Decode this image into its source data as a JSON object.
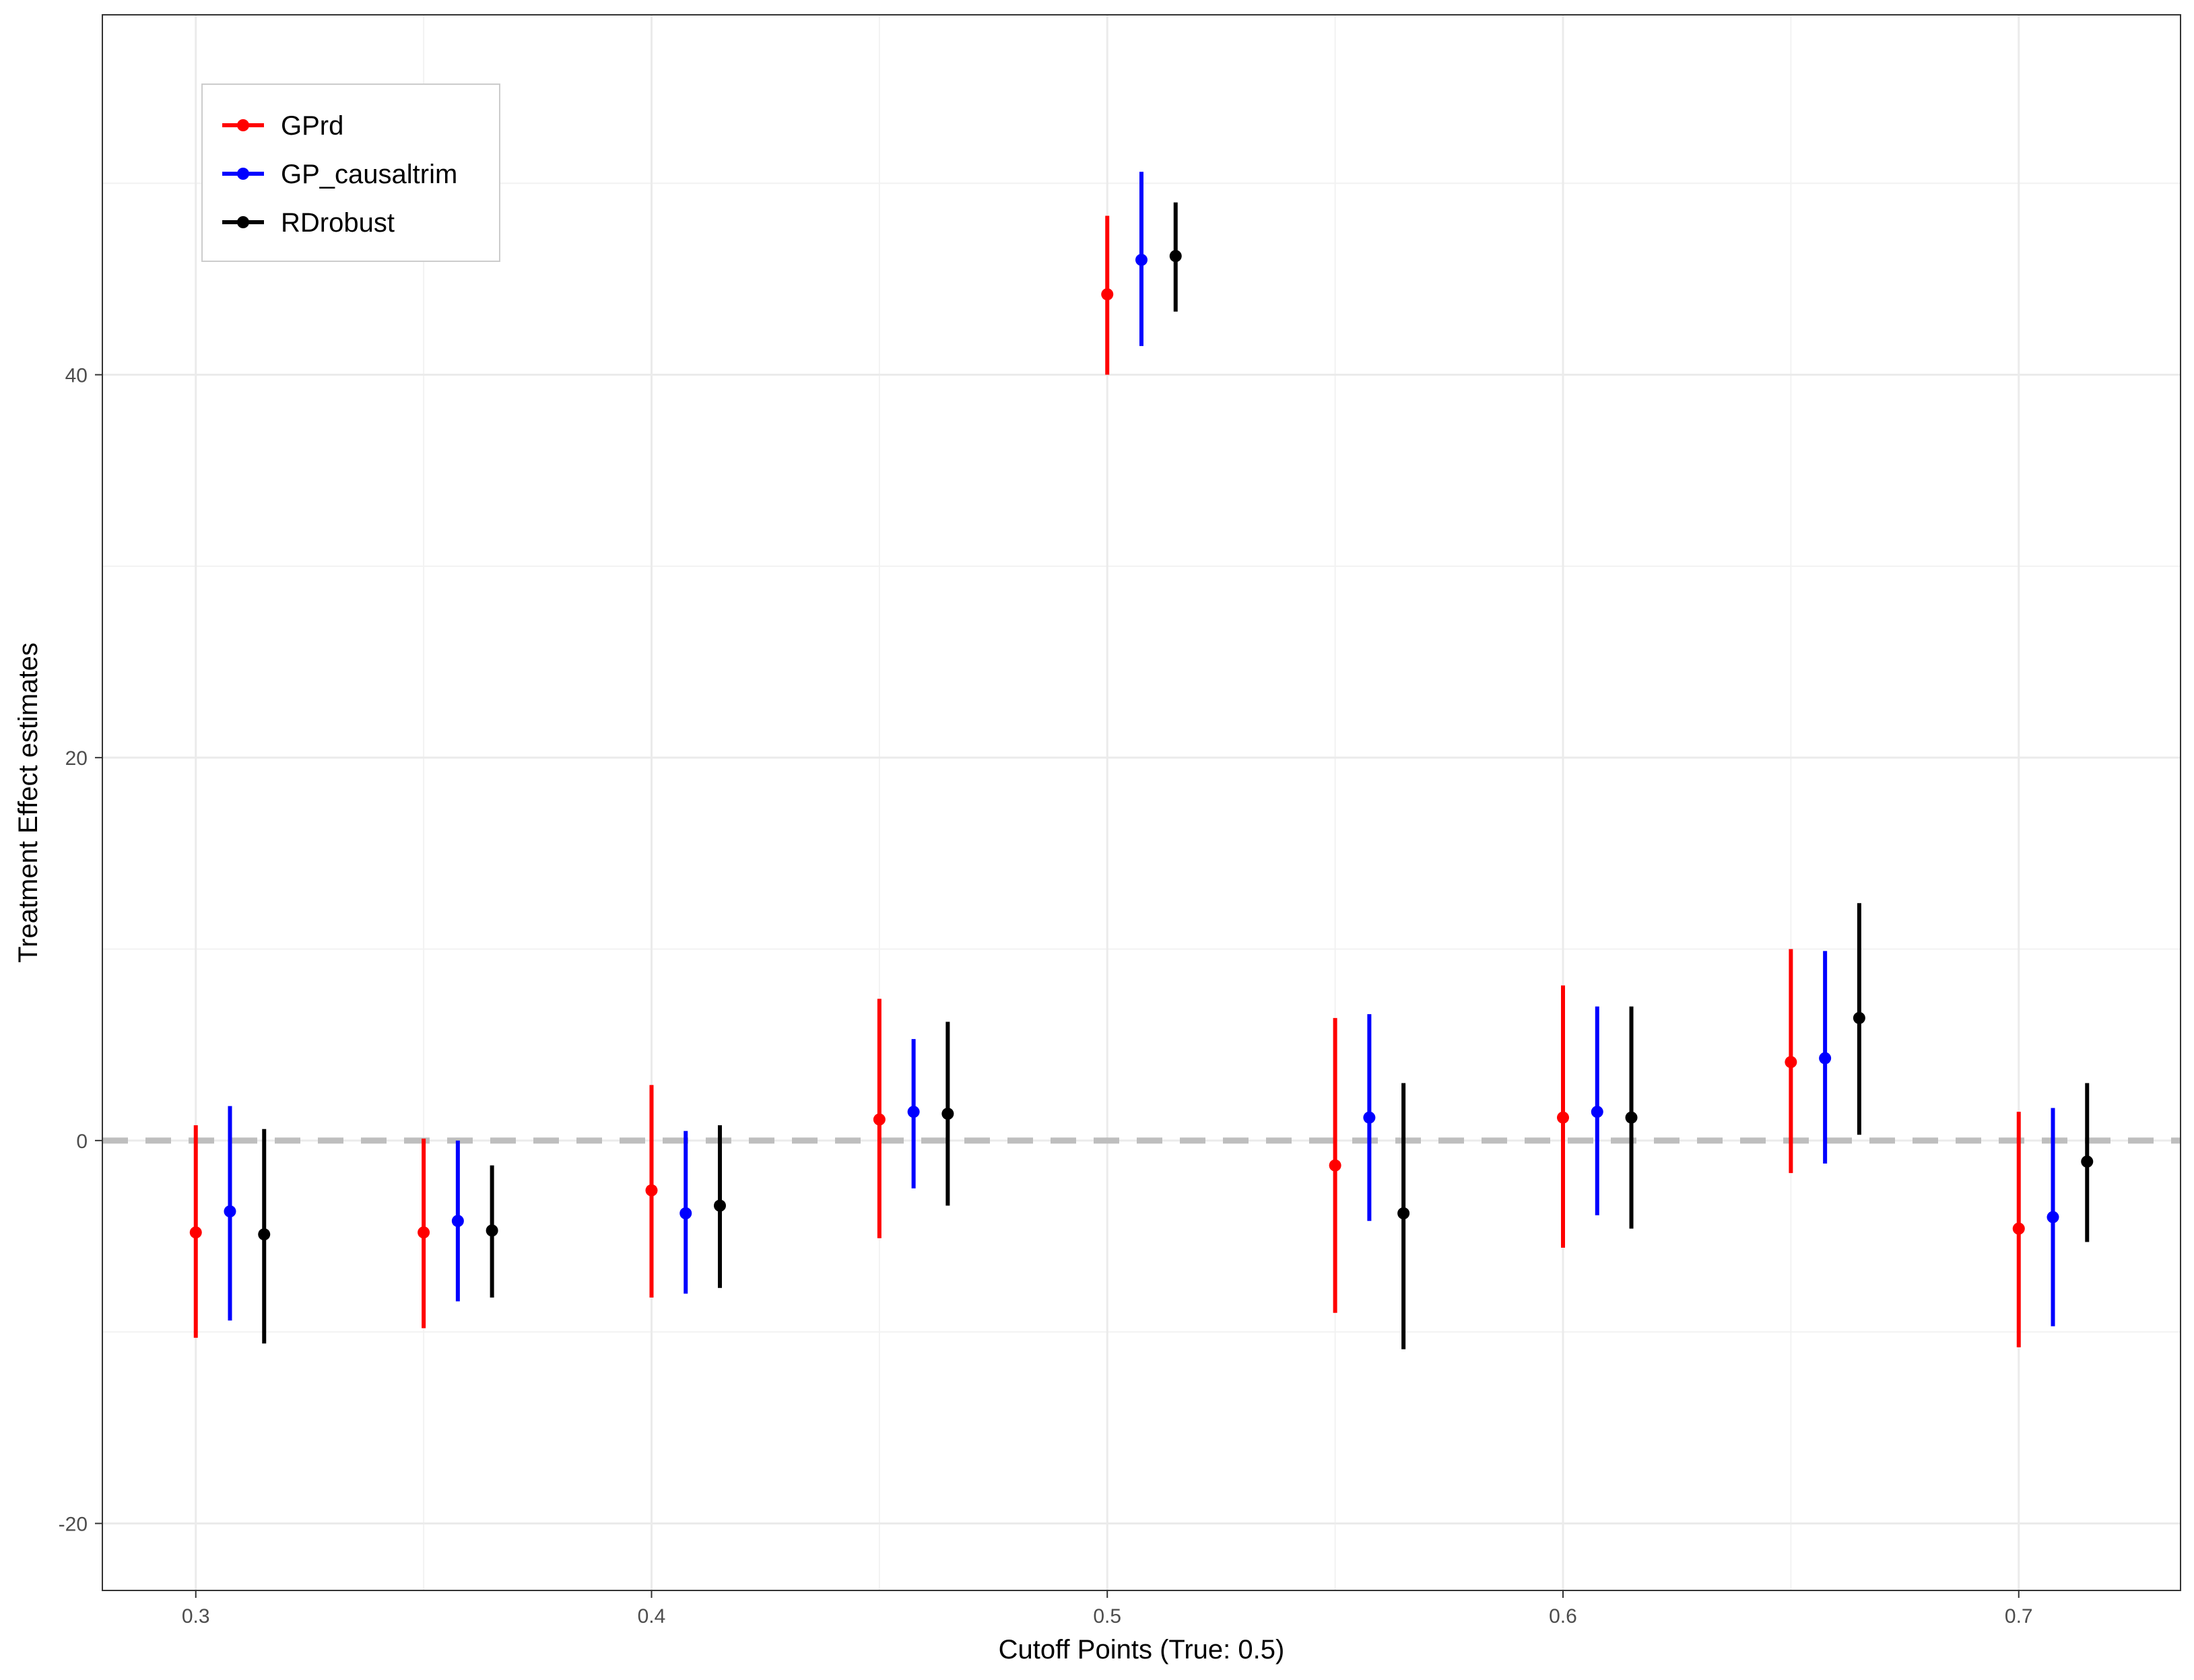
{
  "chart_data": {
    "type": "errorbar",
    "title": "",
    "xlabel": "Cutoff Points (True: 0.5)",
    "ylabel": "Treatment Effect estimates",
    "xlim": [
      0.2795,
      0.7355
    ],
    "ylim": [
      -23.5,
      58.8
    ],
    "x_ticks": [
      0.3,
      0.4,
      0.5,
      0.6,
      0.7
    ],
    "x_tick_labels": [
      "0.3",
      "0.4",
      "0.5",
      "0.6",
      "0.7"
    ],
    "y_ticks": [
      -20,
      0,
      20,
      40
    ],
    "y_tick_labels": [
      "-20",
      "0",
      "20",
      "40"
    ],
    "x_minor_gridlines": [
      0.35,
      0.45,
      0.55,
      0.65
    ],
    "y_minor_gridlines": [
      -10,
      10,
      30,
      50
    ],
    "grid": true,
    "reference_line": {
      "y": 0,
      "style": "dashed",
      "color": "#bebebe"
    },
    "legend_position": "top-left",
    "dodge_offset": 0.0075,
    "series": [
      {
        "name": "GPrd",
        "color": "#ff0000",
        "offset_index": 0,
        "points": [
          {
            "x": 0.3,
            "estimate": -4.8,
            "lower": -10.3,
            "upper": 0.8
          },
          {
            "x": 0.35,
            "estimate": -4.8,
            "lower": -9.8,
            "upper": 0.1
          },
          {
            "x": 0.4,
            "estimate": -2.6,
            "lower": -8.2,
            "upper": 2.9
          },
          {
            "x": 0.45,
            "estimate": 1.1,
            "lower": -5.1,
            "upper": 7.4
          },
          {
            "x": 0.5,
            "estimate": 44.2,
            "lower": 40.0,
            "upper": 48.3
          },
          {
            "x": 0.55,
            "estimate": -1.3,
            "lower": -9.0,
            "upper": 6.4
          },
          {
            "x": 0.6,
            "estimate": 1.2,
            "lower": -5.6,
            "upper": 8.1
          },
          {
            "x": 0.65,
            "estimate": 4.1,
            "lower": -1.7,
            "upper": 10.0
          },
          {
            "x": 0.7,
            "estimate": -4.6,
            "lower": -10.8,
            "upper": 1.5
          }
        ]
      },
      {
        "name": "GP_causaltrim",
        "color": "#0000ff",
        "offset_index": 1,
        "points": [
          {
            "x": 0.3,
            "estimate": -3.7,
            "lower": -9.4,
            "upper": 1.8
          },
          {
            "x": 0.35,
            "estimate": -4.2,
            "lower": -8.4,
            "upper": 0.0
          },
          {
            "x": 0.4,
            "estimate": -3.8,
            "lower": -8.0,
            "upper": 0.5
          },
          {
            "x": 0.45,
            "estimate": 1.5,
            "lower": -2.5,
            "upper": 5.3
          },
          {
            "x": 0.5,
            "estimate": 46.0,
            "lower": 41.5,
            "upper": 50.6
          },
          {
            "x": 0.55,
            "estimate": 1.2,
            "lower": -4.2,
            "upper": 6.6
          },
          {
            "x": 0.6,
            "estimate": 1.5,
            "lower": -3.9,
            "upper": 7.0
          },
          {
            "x": 0.65,
            "estimate": 4.3,
            "lower": -1.2,
            "upper": 9.9
          },
          {
            "x": 0.7,
            "estimate": -4.0,
            "lower": -9.7,
            "upper": 1.7
          }
        ]
      },
      {
        "name": "RDrobust",
        "color": "#000000",
        "offset_index": 2,
        "points": [
          {
            "x": 0.3,
            "estimate": -4.9,
            "lower": -10.6,
            "upper": 0.6
          },
          {
            "x": 0.35,
            "estimate": -4.7,
            "lower": -8.2,
            "upper": -1.3
          },
          {
            "x": 0.4,
            "estimate": -3.4,
            "lower": -7.7,
            "upper": 0.8
          },
          {
            "x": 0.45,
            "estimate": 1.4,
            "lower": -3.4,
            "upper": 6.2
          },
          {
            "x": 0.5,
            "estimate": 46.2,
            "lower": 43.3,
            "upper": 49.0
          },
          {
            "x": 0.55,
            "estimate": -3.8,
            "lower": -10.9,
            "upper": 3.0
          },
          {
            "x": 0.6,
            "estimate": 1.2,
            "lower": -4.6,
            "upper": 7.0
          },
          {
            "x": 0.65,
            "estimate": 6.4,
            "lower": 0.3,
            "upper": 12.4
          },
          {
            "x": 0.7,
            "estimate": -1.1,
            "lower": -5.3,
            "upper": 3.0
          }
        ]
      }
    ]
  }
}
